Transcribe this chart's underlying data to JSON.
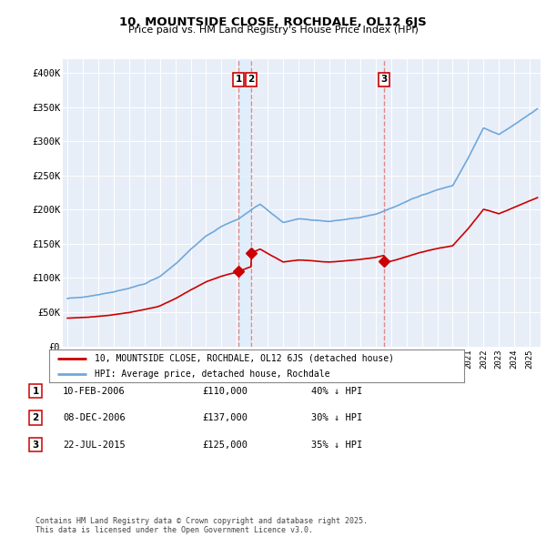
{
  "title": "10, MOUNTSIDE CLOSE, ROCHDALE, OL12 6JS",
  "subtitle": "Price paid vs. HM Land Registry's House Price Index (HPI)",
  "legend_line1": "10, MOUNTSIDE CLOSE, ROCHDALE, OL12 6JS (detached house)",
  "legend_line2": "HPI: Average price, detached house, Rochdale",
  "table_rows": [
    {
      "num": "1",
      "date": "10-FEB-2006",
      "price": "£110,000",
      "pct": "40% ↓ HPI"
    },
    {
      "num": "2",
      "date": "08-DEC-2006",
      "price": "£137,000",
      "pct": "30% ↓ HPI"
    },
    {
      "num": "3",
      "date": "22-JUL-2015",
      "price": "£125,000",
      "pct": "35% ↓ HPI"
    }
  ],
  "footnote": "Contains HM Land Registry data © Crown copyright and database right 2025.\nThis data is licensed under the Open Government Licence v3.0.",
  "sale_dates": [
    2006.11,
    2006.93,
    2015.55
  ],
  "sale_prices": [
    110000,
    137000,
    125000
  ],
  "hpi_color": "#6fa8dc",
  "sale_color": "#cc0000",
  "vline_color": "#dd8888",
  "vfill_color": "#ddeeff",
  "background_color": "#ffffff",
  "plot_bg": "#e8eef8",
  "ylim": [
    0,
    420000
  ],
  "xlim_start": 1994.7,
  "xlim_end": 2025.7
}
